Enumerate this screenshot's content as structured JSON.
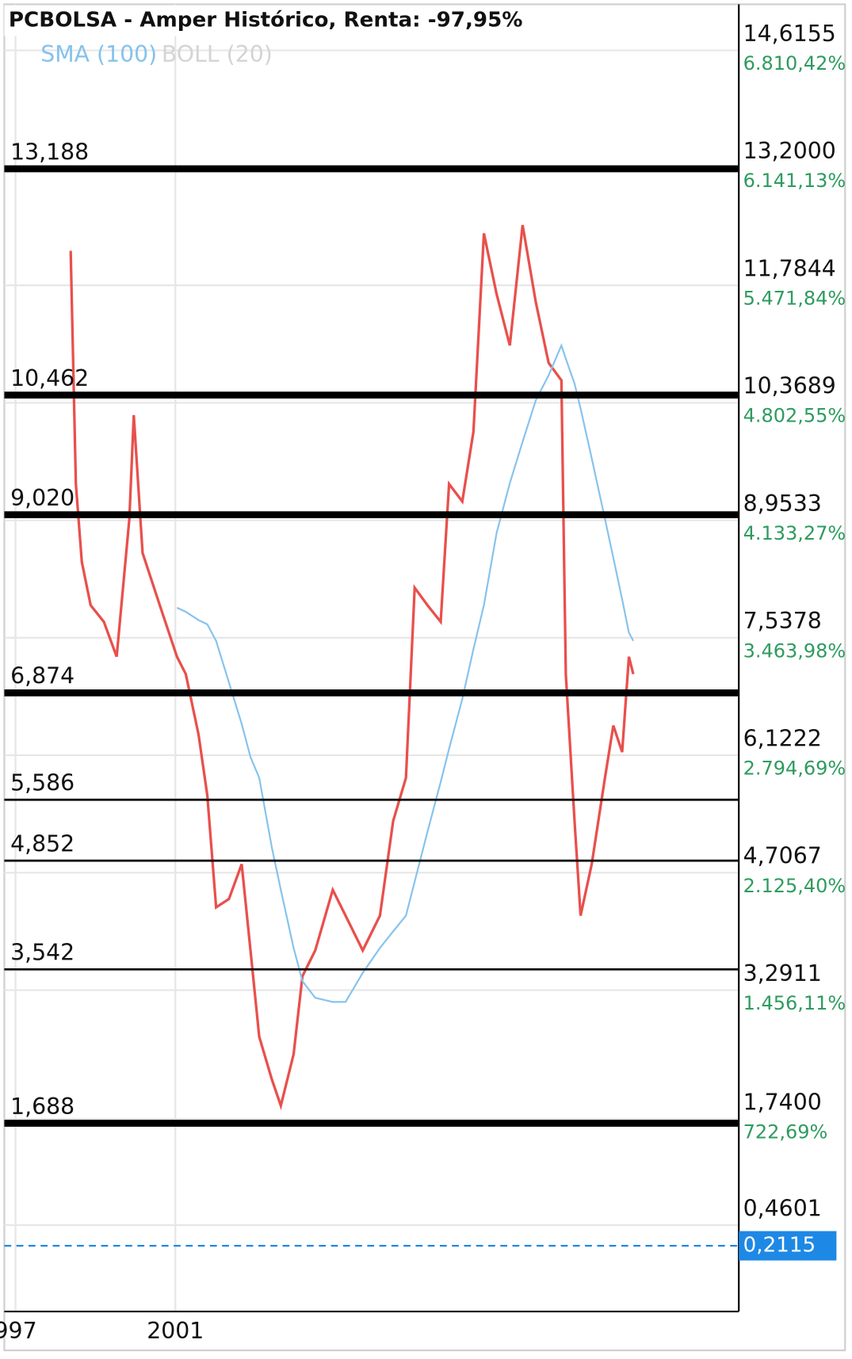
{
  "chart_data": {
    "type": "line",
    "title": "PCBOLSA - Amper Histórico, Renta: -97,95%",
    "boll": {
      "name": "BOLL (20)",
      "color": "#d4d4d4"
    },
    "x": [
      1998.38,
      1998.51,
      1998.66,
      1998.88,
      1999.21,
      1999.53,
      1999.85,
      1999.96,
      2000.18,
      2000.61,
      2001.04,
      2001.26,
      2001.58,
      2001.8,
      2002.02,
      2002.34,
      2002.66,
      2002.88,
      2003.1,
      2003.42,
      2003.64,
      2003.96,
      2004.18,
      2004.5,
      2004.94,
      2005.26,
      2005.69,
      2006.12,
      2006.45,
      2006.77,
      2006.99,
      2007.31,
      2007.64,
      2007.85,
      2008.18,
      2008.46,
      2008.72,
      2009.04,
      2009.37,
      2009.69,
      2010.02,
      2010.34,
      2010.66,
      2010.77,
      2010.99,
      2011.14,
      2011.42,
      2011.75,
      2011.96,
      2012.18,
      2012.35,
      2012.46
    ],
    "series": [
      {
        "color": "#e8504c",
        "values": [
          12.2,
          9.39,
          8.45,
          7.93,
          7.73,
          7.31,
          8.97,
          10.22,
          8.56,
          7.93,
          7.31,
          7.1,
          6.37,
          5.64,
          4.29,
          4.39,
          4.81,
          3.77,
          2.73,
          2.21,
          1.9,
          2.52,
          3.46,
          3.77,
          4.5,
          4.19,
          3.77,
          4.19,
          5.33,
          5.85,
          8.14,
          7.93,
          7.73,
          9.39,
          9.18,
          10.02,
          12.41,
          11.68,
          11.06,
          12.51,
          11.58,
          10.85,
          10.64,
          7.1,
          5.33,
          4.19,
          4.81,
          5.85,
          6.48,
          6.16,
          7.31,
          7.1
        ]
      },
      {
        "name": "SMA (100)",
        "color": "#86c3ec",
        "values": [
          null,
          null,
          null,
          null,
          null,
          null,
          null,
          null,
          null,
          null,
          7.9,
          7.85,
          7.75,
          7.7,
          7.5,
          7.0,
          6.5,
          6.1,
          5.85,
          5.0,
          4.5,
          3.8,
          3.4,
          3.2,
          3.15,
          3.15,
          3.5,
          3.8,
          4.0,
          4.19,
          4.6,
          5.2,
          5.8,
          6.2,
          6.8,
          7.4,
          7.93,
          8.8,
          9.4,
          9.9,
          10.4,
          10.7,
          11.06,
          10.9,
          10.6,
          10.3,
          9.7,
          8.97,
          8.5,
          8.0,
          7.6,
          7.5
        ]
      }
    ],
    "xlim": [
      1996.72,
      2015.1
    ],
    "xticks": [
      {
        "value": 1997,
        "label": "997"
      },
      2001
    ],
    "ylim": [
      -0.58,
      15.17
    ],
    "yticks": [
      {
        "value": 14.6155,
        "label": "14,6155"
      },
      {
        "value": 13.2,
        "label": "13,2000"
      },
      {
        "value": 11.7844,
        "label": "11,7844"
      },
      {
        "value": 10.3689,
        "label": "10,3689"
      },
      {
        "value": 8.9533,
        "label": "8,9533"
      },
      {
        "value": 7.5378,
        "label": "7,5378"
      },
      {
        "value": 6.1222,
        "label": "6,1222"
      },
      {
        "value": 4.7067,
        "label": "4,7067"
      },
      {
        "value": 3.2911,
        "label": "3,2911"
      },
      {
        "value": 1.74,
        "label": "1,7400"
      },
      {
        "value": 0.4601,
        "label": "0,4601"
      }
    ],
    "ytick_returns": [
      {
        "value": 6810.42,
        "label": "6.810,42%"
      },
      {
        "value": 6141.13,
        "label": "6.141,13%"
      },
      {
        "value": 5471.84,
        "label": "5.471,84%"
      },
      {
        "value": 4802.55,
        "label": "4.802,55%"
      },
      {
        "value": 4133.27,
        "label": "4.133,27%"
      },
      {
        "value": 3463.98,
        "label": "3.463,98%"
      },
      {
        "value": 2794.69,
        "label": "2.794,69%"
      },
      {
        "value": 2125.4,
        "label": "2.125,40%"
      },
      {
        "value": 1456.11,
        "label": "1.456,11%"
      },
      {
        "value": 722.69,
        "label": "722,69%"
      }
    ],
    "levels": [
      {
        "value": 13.188,
        "label": "13,188",
        "style": "heavy"
      },
      {
        "value": 10.462,
        "label": "10,462",
        "style": "heavy"
      },
      {
        "value": 9.02,
        "label": "9,020",
        "style": "heavy"
      },
      {
        "value": 6.874,
        "label": "6,874",
        "style": "heavy"
      },
      {
        "value": 5.586,
        "label": "5,586",
        "style": "light"
      },
      {
        "value": 4.852,
        "label": "4,852",
        "style": "light"
      },
      {
        "value": 3.542,
        "label": "3,542",
        "style": "light"
      },
      {
        "value": 1.688,
        "label": "1,688",
        "style": "heavy"
      }
    ],
    "last": {
      "value": 0.2115,
      "label": "0,2115",
      "color": "#1e88e5"
    },
    "grid": true
  }
}
